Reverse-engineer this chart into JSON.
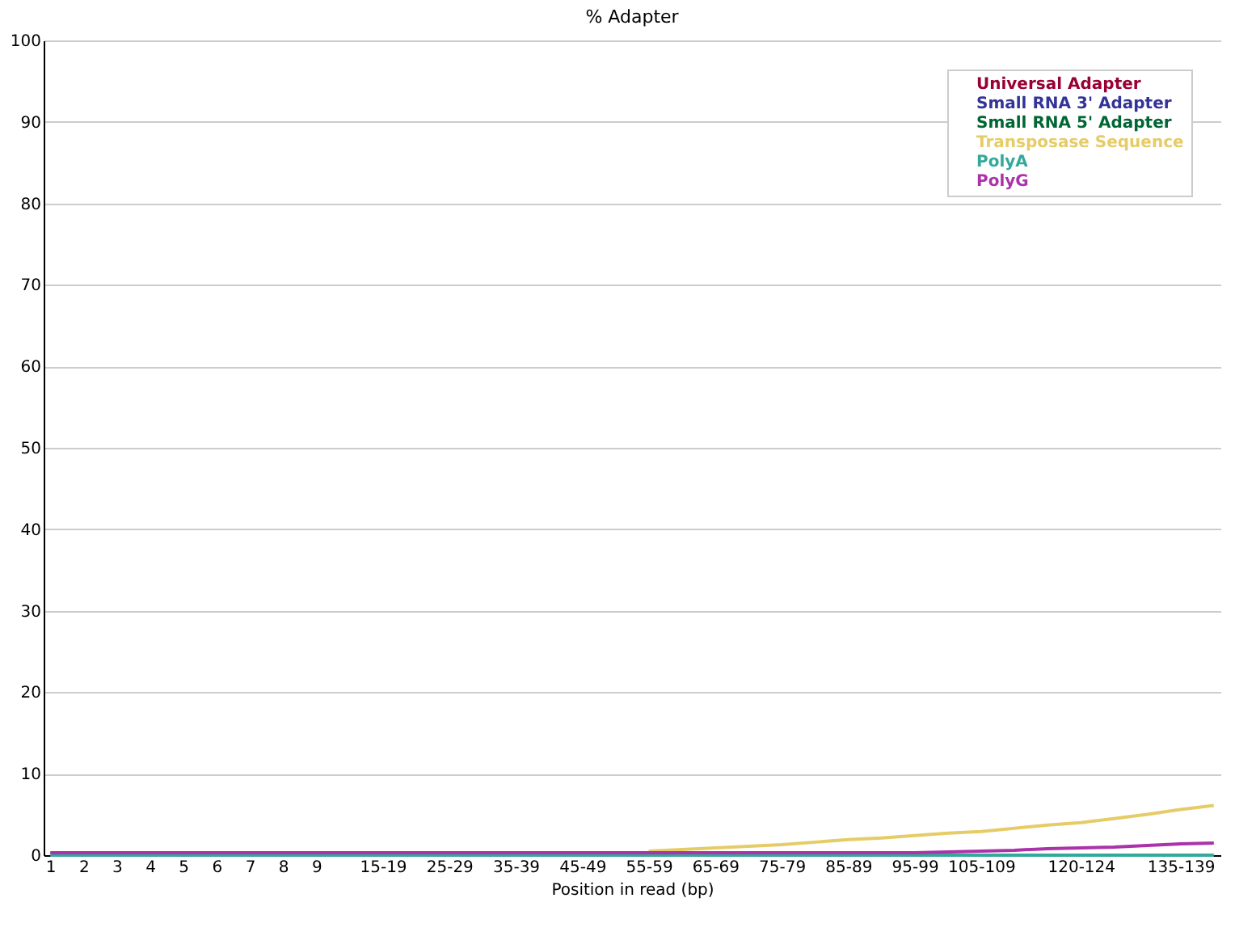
{
  "chart_data": {
    "type": "line",
    "title": "% Adapter",
    "xlabel": "Position in read (bp)",
    "categories": [
      "1",
      "2",
      "3",
      "4",
      "5",
      "6",
      "7",
      "8",
      "9",
      null,
      "15-19",
      null,
      "25-29",
      null,
      "35-39",
      null,
      "45-49",
      null,
      "55-59",
      null,
      "65-69",
      null,
      "75-79",
      null,
      "85-89",
      null,
      "95-99",
      null,
      "105-109",
      null,
      null,
      "120-124",
      null,
      null,
      "135-139",
      null
    ],
    "series": [
      {
        "name": "Universal Adapter",
        "color": "#990033",
        "values": [
          null,
          null,
          null,
          null,
          null,
          null,
          null,
          null,
          null,
          null,
          null,
          null,
          null,
          null,
          null,
          null,
          null,
          null,
          null,
          null,
          null,
          null,
          null,
          null,
          null,
          null,
          null,
          null,
          null,
          null,
          null,
          null,
          null,
          null,
          null,
          null
        ]
      },
      {
        "name": "Small RNA 3' Adapter",
        "color": "#333399",
        "values": [
          null,
          null,
          null,
          null,
          null,
          null,
          null,
          null,
          null,
          null,
          null,
          null,
          null,
          null,
          null,
          null,
          null,
          null,
          null,
          null,
          null,
          null,
          null,
          null,
          null,
          null,
          null,
          null,
          null,
          null,
          null,
          null,
          null,
          null,
          null,
          null
        ]
      },
      {
        "name": "Small RNA 5' Adapter",
        "color": "#006633",
        "values": [
          null,
          null,
          null,
          null,
          null,
          null,
          null,
          null,
          null,
          null,
          null,
          null,
          null,
          null,
          null,
          null,
          null,
          null,
          null,
          null,
          null,
          null,
          null,
          null,
          null,
          null,
          null,
          null,
          null,
          null,
          null,
          null,
          null,
          null,
          null,
          null
        ]
      },
      {
        "name": "Transposase Sequence",
        "color": "#e6cc66",
        "values": [
          null,
          null,
          null,
          null,
          null,
          null,
          null,
          null,
          null,
          null,
          null,
          null,
          null,
          null,
          null,
          null,
          null,
          null,
          0.5,
          0.7,
          0.9,
          1.1,
          1.3,
          1.6,
          1.9,
          2.1,
          2.4,
          2.7,
          2.9,
          3.3,
          3.7,
          4.0,
          4.5,
          5.0,
          5.6,
          6.1
        ]
      },
      {
        "name": "PolyA",
        "color": "#33aa99",
        "values": [
          0,
          0,
          0,
          0,
          0,
          0,
          0,
          0,
          0,
          0,
          0,
          0,
          0,
          0,
          0,
          0,
          0,
          0,
          0,
          0,
          0,
          0,
          0,
          0,
          0,
          0,
          0,
          0,
          0,
          0,
          0,
          0,
          0,
          0,
          0,
          0
        ]
      },
      {
        "name": "PolyG",
        "color": "#aa33aa",
        "values": [
          0.3,
          0.3,
          0.3,
          0.3,
          0.3,
          0.3,
          0.3,
          0.3,
          0.3,
          0.3,
          0.3,
          0.3,
          0.3,
          0.3,
          0.3,
          0.3,
          0.3,
          0.3,
          0.3,
          0.3,
          0.3,
          0.3,
          0.3,
          0.3,
          0.3,
          0.3,
          0.3,
          0.4,
          0.5,
          0.6,
          0.8,
          0.9,
          1.0,
          1.2,
          1.4,
          1.5
        ]
      }
    ],
    "ylim": [
      0,
      100
    ],
    "yticks": [
      0,
      10,
      20,
      30,
      40,
      50,
      60,
      70,
      80,
      90,
      100
    ],
    "grid": "y",
    "legend": "top right"
  }
}
